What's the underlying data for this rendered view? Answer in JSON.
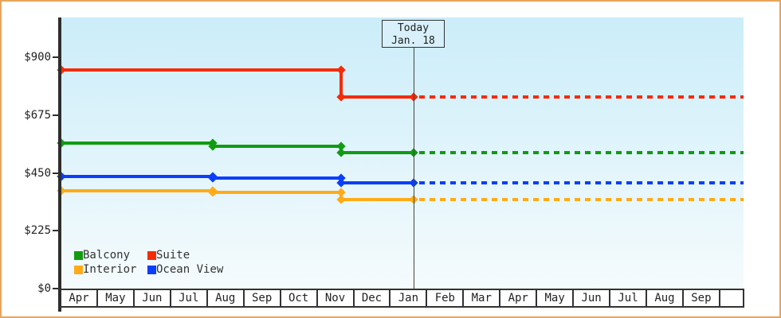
{
  "frame": {
    "border_color": "#e8a55c",
    "background": "#ffffff"
  },
  "chart_data": {
    "type": "line",
    "title": "",
    "description": "Cruise cabin price history by category; solid step lines up to today, dotted forecast lines after today",
    "y_axis": {
      "tick_labels": [
        "$900",
        "$675",
        "$450",
        "$225",
        "$0"
      ],
      "tick_values": [
        900,
        675,
        450,
        225,
        0
      ],
      "min": 0,
      "max": 1055,
      "grid": false
    },
    "x_axis": {
      "month_labels": [
        "Apr",
        "May",
        "Jun",
        "Jul",
        "Aug",
        "Sep",
        "Oct",
        "Nov",
        "Dec",
        "Jan",
        "Feb",
        "Mar",
        "Apr",
        "May",
        "Jun",
        "Jul",
        "Aug",
        "Sep"
      ]
    },
    "today_marker": {
      "line1": "Today",
      "line2": "Jan. 18",
      "month_offset": 9.61
    },
    "series": [
      {
        "name": "Suite",
        "color": "#f52b07",
        "points": [
          [
            0,
            850
          ],
          [
            7.65,
            850
          ],
          [
            7.65,
            745
          ],
          [
            9.61,
            745
          ]
        ],
        "forecast_value": 745
      },
      {
        "name": "Balcony",
        "color": "#119b11",
        "points": [
          [
            0,
            565
          ],
          [
            4.135,
            565
          ],
          [
            4.135,
            555
          ],
          [
            7.65,
            555
          ],
          [
            7.65,
            530
          ],
          [
            9.61,
            530
          ]
        ],
        "forecast_value": 530
      },
      {
        "name": "Ocean View",
        "color": "#0a3efc",
        "points": [
          [
            0,
            435
          ],
          [
            4.135,
            435
          ],
          [
            4.135,
            430
          ],
          [
            7.65,
            430
          ],
          [
            7.65,
            410
          ],
          [
            9.61,
            410
          ]
        ],
        "forecast_value": 410
      },
      {
        "name": "Interior",
        "color": "#ffab18",
        "points": [
          [
            0,
            380
          ],
          [
            4.135,
            380
          ],
          [
            4.135,
            375
          ],
          [
            7.65,
            375
          ],
          [
            7.65,
            345
          ],
          [
            9.61,
            345
          ]
        ],
        "forecast_value": 345
      }
    ],
    "legend": {
      "position": "bottom-left",
      "items": [
        {
          "label": "Balcony",
          "color": "#119b11"
        },
        {
          "label": "Suite",
          "color": "#f52b07"
        },
        {
          "label": "Interior",
          "color": "#ffab18"
        },
        {
          "label": "Ocean View",
          "color": "#0a3efc"
        }
      ]
    }
  }
}
